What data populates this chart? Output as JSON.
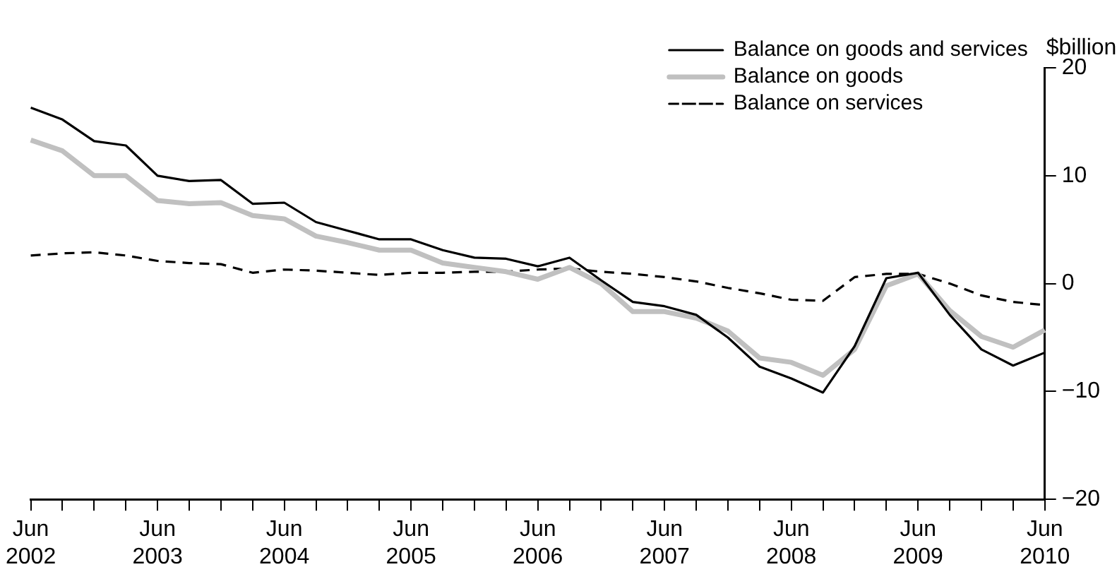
{
  "chart_data": {
    "type": "line",
    "ylabel": "$billion",
    "categories": [
      "Jun 2002",
      null,
      null,
      null,
      "Jun 2003",
      null,
      null,
      null,
      "Jun 2004",
      null,
      null,
      null,
      "Jun 2005",
      null,
      null,
      null,
      "Jun 2006",
      null,
      null,
      null,
      "Jun 2007",
      null,
      null,
      null,
      "Jun 2008",
      null,
      null,
      null,
      "Jun 2009",
      null,
      null,
      null,
      "Jun 2010"
    ],
    "series": [
      {
        "name": "Balance on goods and services",
        "color": "#000000",
        "line_style": "solid",
        "values": [
          16.3,
          15.2,
          13.2,
          12.8,
          10.0,
          9.5,
          9.6,
          7.4,
          7.5,
          5.7,
          4.9,
          4.1,
          4.1,
          3.1,
          2.4,
          2.3,
          1.6,
          2.4,
          0.3,
          -1.7,
          -2.1,
          -2.9,
          -5.0,
          -7.7,
          -8.8,
          -10.1,
          -5.8,
          0.5,
          1.0,
          -2.9,
          -6.1,
          -7.6,
          -6.4
        ]
      },
      {
        "name": "Balance on goods",
        "color": "#c0c0c0",
        "line_style": "solid",
        "values": [
          13.3,
          12.3,
          10.0,
          10.0,
          7.7,
          7.4,
          7.5,
          6.3,
          6.0,
          4.4,
          3.8,
          3.1,
          3.1,
          1.9,
          1.5,
          1.1,
          0.4,
          1.5,
          0.0,
          -2.6,
          -2.6,
          -3.2,
          -4.4,
          -6.9,
          -7.3,
          -8.5,
          -6.1,
          -0.2,
          0.9,
          -2.5,
          -4.9,
          -5.9,
          -4.3
        ]
      },
      {
        "name": "Balance on services",
        "color": "#000000",
        "line_style": "dashed",
        "values": [
          2.6,
          2.8,
          2.9,
          2.6,
          2.1,
          1.9,
          1.8,
          1.0,
          1.3,
          1.2,
          1.0,
          0.8,
          1.0,
          1.0,
          1.1,
          1.1,
          1.3,
          1.4,
          1.1,
          0.9,
          0.6,
          0.2,
          -0.4,
          -0.9,
          -1.5,
          -1.6,
          0.6,
          0.9,
          0.9,
          0.0,
          -1.1,
          -1.7,
          -2.0
        ]
      }
    ],
    "ylim": [
      -20,
      20
    ],
    "yticks": [
      -20,
      -10,
      0,
      10,
      20
    ],
    "grid": false,
    "legend": "top right",
    "marker": "none"
  }
}
